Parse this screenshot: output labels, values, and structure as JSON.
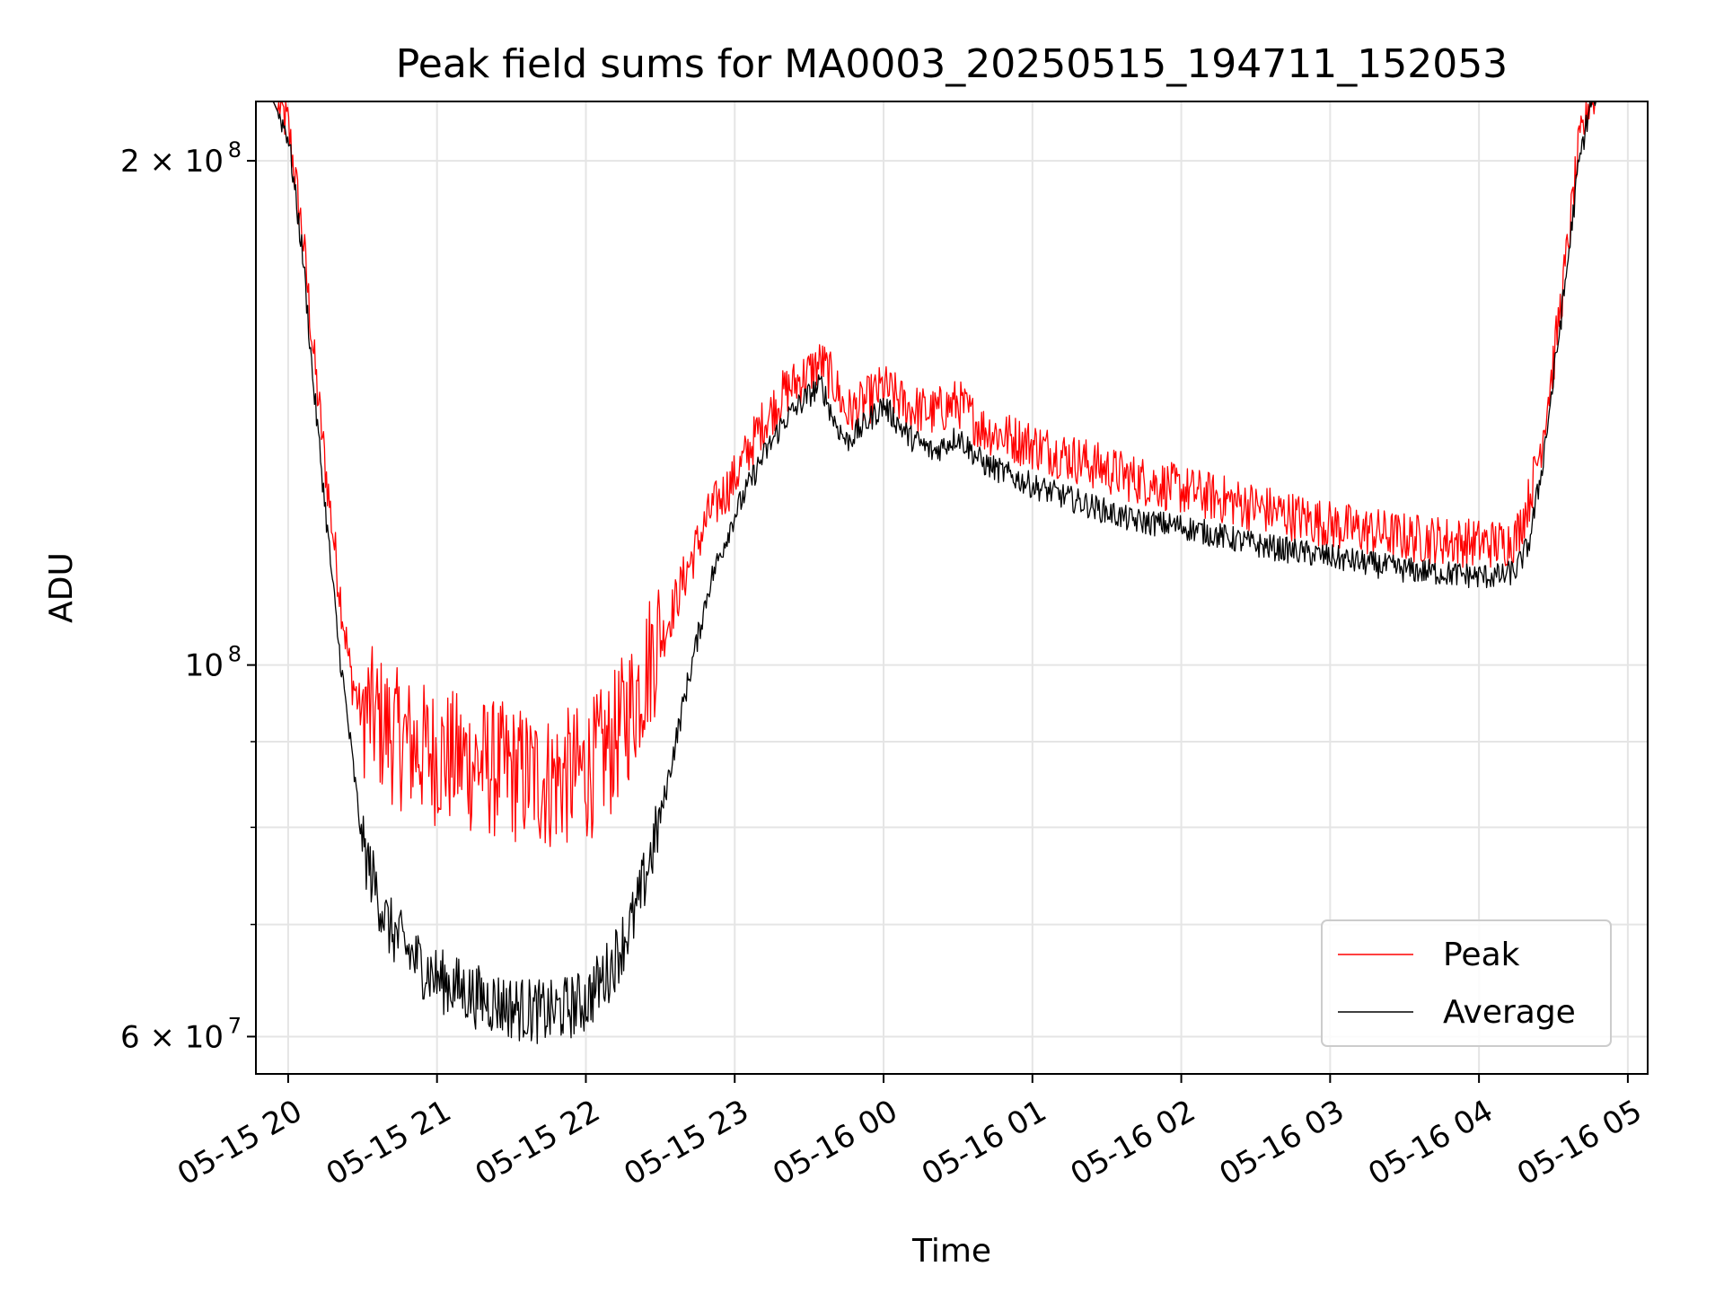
{
  "chart_data": {
    "type": "line",
    "title": "Peak field sums for MA0003_20250515_194711_152053",
    "xlabel": "Time",
    "ylabel": "ADU",
    "yscale": "log",
    "grid": true,
    "legend_position": "lower-right",
    "xlim": [
      "05-15 19:47",
      "05-16 05:08"
    ],
    "ylim": [
      57000000,
      217000000
    ],
    "x_ticks": [
      "05-15 20",
      "05-15 21",
      "05-15 22",
      "05-15 23",
      "05-16 00",
      "05-16 01",
      "05-16 02",
      "05-16 03",
      "05-16 04",
      "05-16 05"
    ],
    "y_ticks": [
      {
        "value": 60000000,
        "label": "6 × 10",
        "exp": "7"
      },
      {
        "value": 100000000,
        "label": "10",
        "exp": "8"
      },
      {
        "value": 200000000,
        "label": "2 × 10",
        "exp": "8"
      }
    ],
    "y_minor_ticks": [
      70000000,
      80000000,
      90000000
    ],
    "x": [
      "05-15 19:47",
      "05-15 19:54",
      "05-15 20:00",
      "05-15 20:06",
      "05-15 20:10",
      "05-15 20:15",
      "05-15 20:20",
      "05-15 20:25",
      "05-15 20:30",
      "05-15 20:40",
      "05-15 20:50",
      "05-15 21:00",
      "05-15 21:15",
      "05-15 21:30",
      "05-15 21:45",
      "05-15 22:00",
      "05-15 22:10",
      "05-15 22:20",
      "05-15 22:30",
      "05-15 22:40",
      "05-15 22:50",
      "05-15 23:00",
      "05-15 23:10",
      "05-15 23:20",
      "05-15 23:30",
      "05-15 23:35",
      "05-15 23:40",
      "05-15 23:45",
      "05-15 23:50",
      "05-16 00:00",
      "05-16 00:10",
      "05-16 00:20",
      "05-16 00:30",
      "05-16 00:40",
      "05-16 01:00",
      "05-16 01:20",
      "05-16 01:40",
      "05-16 02:00",
      "05-16 02:30",
      "05-16 03:00",
      "05-16 03:30",
      "05-16 04:00",
      "05-16 04:10",
      "05-16 04:15",
      "05-16 04:20",
      "05-16 04:25",
      "05-16 04:30",
      "05-16 04:35",
      "05-16 04:40",
      "05-16 04:45",
      "05-16 04:50",
      "05-16 05:08"
    ],
    "series": [
      {
        "name": "Peak",
        "color": "#ff0000",
        "values": [
          217000000,
          217000000,
          208000000,
          178000000,
          153000000,
          130000000,
          112000000,
          98000000,
          92000000,
          89000000,
          87000000,
          86000000,
          85000000,
          84000000,
          83000000,
          84000000,
          87000000,
          93000000,
          102000000,
          112000000,
          122000000,
          128000000,
          137000000,
          144000000,
          148000000,
          150000000,
          146000000,
          140000000,
          141000000,
          145000000,
          141000000,
          140000000,
          142000000,
          137000000,
          134000000,
          131000000,
          128000000,
          126000000,
          123000000,
          120000000,
          118000000,
          117000000,
          117000000,
          118000000,
          124000000,
          134000000,
          150000000,
          172000000,
          200000000,
          217000000,
          217000000,
          217000000
        ]
      },
      {
        "name": "Average",
        "color": "#000000",
        "values": [
          217000000,
          217000000,
          207000000,
          175000000,
          148000000,
          124000000,
          104000000,
          90000000,
          78000000,
          70000000,
          67000000,
          65000000,
          63500000,
          62500000,
          62000000,
          63000000,
          66000000,
          71000000,
          81000000,
          96000000,
          112000000,
          123000000,
          132000000,
          140000000,
          145000000,
          147000000,
          140000000,
          136000000,
          138000000,
          143000000,
          137000000,
          134000000,
          137000000,
          132000000,
          128000000,
          125000000,
          122000000,
          121000000,
          118000000,
          116000000,
          114000000,
          113000000,
          113000000,
          114000000,
          118000000,
          130000000,
          148000000,
          170000000,
          198000000,
          217000000,
          217000000,
          217000000
        ]
      }
    ]
  }
}
